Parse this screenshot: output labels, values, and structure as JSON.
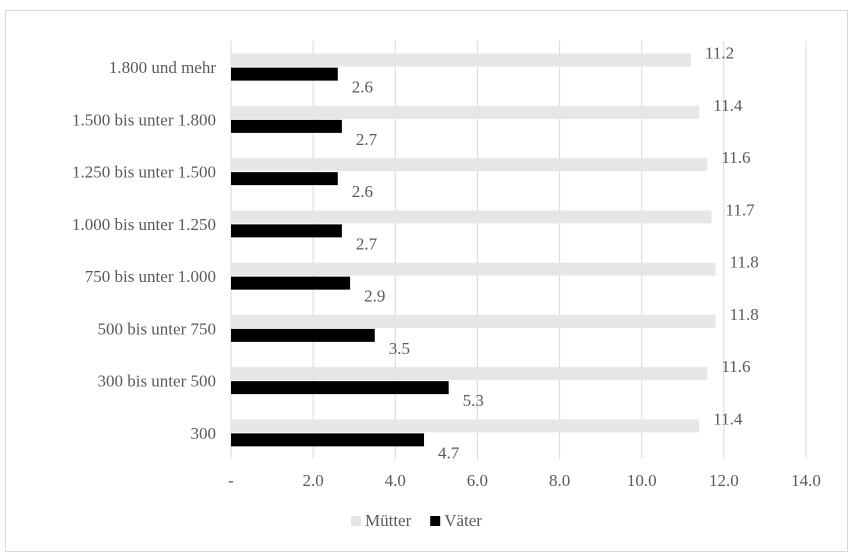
{
  "chart_data": {
    "type": "bar",
    "orientation": "horizontal",
    "title": "",
    "xlabel": "",
    "ylabel": "",
    "categories": [
      "300",
      "300 bis unter 500",
      "500 bis unter 750",
      "750 bis unter 1.000",
      "1.000 bis unter 1.250",
      "1.250 bis unter 1.500",
      "1.500 bis unter 1.800",
      "1.800 und mehr"
    ],
    "series": [
      {
        "name": "Mütter",
        "color": "#e6e6e6",
        "values": [
          11.4,
          11.6,
          11.8,
          11.8,
          11.7,
          11.6,
          11.4,
          11.2
        ],
        "labels": [
          "11.4",
          "11.6",
          "11.8",
          "11.8",
          "11.7",
          "11.6",
          "11.4",
          "11.2"
        ]
      },
      {
        "name": "Väter",
        "color": "#000000",
        "values": [
          4.7,
          5.3,
          3.5,
          2.9,
          2.7,
          2.6,
          2.7,
          2.6
        ],
        "labels": [
          "4.7",
          "5.3",
          "3.5",
          "2.9",
          "2.7",
          "2.6",
          "2.7",
          "2.6"
        ]
      }
    ],
    "xlim": [
      0,
      14
    ],
    "xticks": [
      0,
      2,
      4,
      6,
      8,
      10,
      12,
      14
    ],
    "xtick_labels": [
      "-",
      "2.0",
      "4.0",
      "6.0",
      "8.0",
      "10.0",
      "12.0",
      "14.0"
    ],
    "grid": "vertical",
    "legend": "bottom"
  }
}
